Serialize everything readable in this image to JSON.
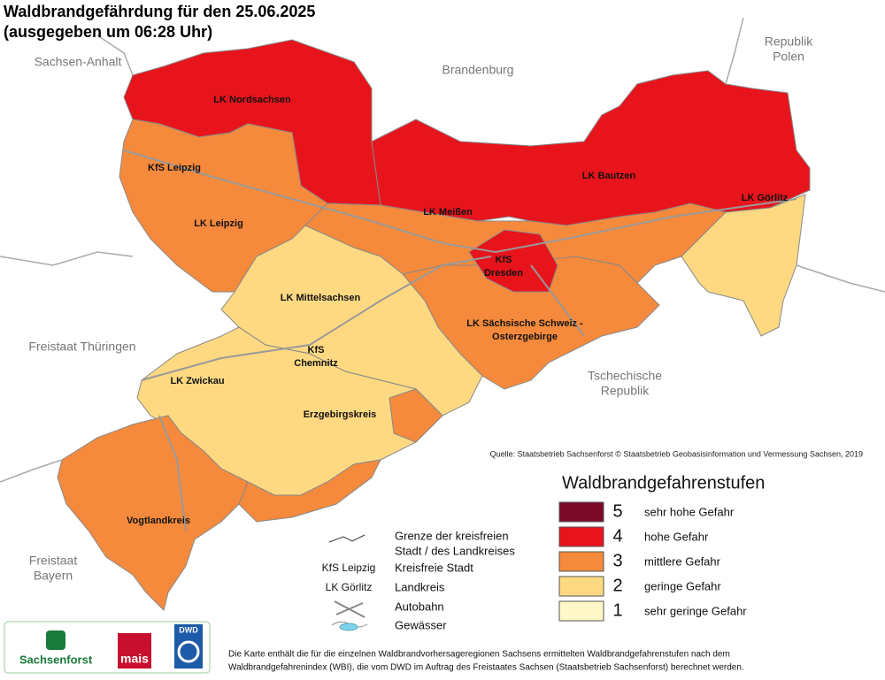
{
  "header": {
    "title": "Waldbrandgefährdung  für den  25.06.2025",
    "subtitle": "(ausgegeben um 06:28 Uhr)"
  },
  "neighbors": [
    [
      "Sachsen-Anhalt"
    ],
    [
      "Brandenburg"
    ],
    [
      "Republik",
      "Polen"
    ],
    [
      "Freistaat Thüringen"
    ],
    [
      "Tschechische",
      "Republik"
    ],
    [
      "Freistaat",
      "Bayern"
    ]
  ],
  "districts": [
    [
      "LK Nordsachsen"
    ],
    [
      "KfS Leipzig"
    ],
    [
      "LK Leipzig"
    ],
    [
      "LK Meißen"
    ],
    [
      "LK Bautzen"
    ],
    [
      "LK Görlitz"
    ],
    [
      "KfS",
      "Dresden"
    ],
    [
      "LK Mittelsachsen"
    ],
    [
      "LK Sächsische Schweiz -",
      "Osterzgebirge"
    ],
    [
      "KfS",
      "Chemnitz"
    ],
    [
      "LK Zwickau"
    ],
    [
      "Erzgebirgskreis"
    ],
    [
      "Vogtlandkreis"
    ]
  ],
  "regions": [
    {
      "level": 4
    },
    {
      "level": 3
    },
    {
      "level": 4
    },
    {
      "level": 3
    },
    {
      "level": 2
    },
    {
      "level": 3
    },
    {
      "level": 4
    },
    {
      "level": 2
    },
    {
      "level": 2
    },
    {
      "level": 3
    },
    {
      "level": 3
    },
    {
      "level": 3
    }
  ],
  "legend": {
    "title": "Waldbrandgefahrenstufen",
    "levels": [
      {
        "level": 5,
        "label": "sehr hohe Gefahr",
        "color": "#7b0a2a"
      },
      {
        "level": 4,
        "label": "hohe Gefahr",
        "color": "#e8141c"
      },
      {
        "level": 3,
        "label": "mittlere Gefahr",
        "color": "#f58a3c"
      },
      {
        "level": 2,
        "label": "geringe Gefahr",
        "color": "#fed982"
      },
      {
        "level": 1,
        "label": "sehr geringe Gefahr",
        "color": "#fff8c8"
      }
    ]
  },
  "symbols": {
    "border": [
      "Grenze der kreisfreien",
      "Stadt / des Landkreises"
    ],
    "city_example": "KfS Leipzig",
    "city": "Kreisfreie Stadt",
    "county_example": "LK Görlitz",
    "county": "Landkreis",
    "motorway": "Autobahn",
    "water": "Gewässer"
  },
  "source": "Quelle: Staatsbetrieb Sachsenforst  © Staatsbetrieb Geobasisinformation und Vermessung Sachsen, 2019",
  "footnote": [
    "Die Karte enthält die für die einzelnen Waldbrandvorhersageregionen Sachsens ermittelten Waldbrandgefahrenstufen nach dem",
    "Waldbrandgefahrenindex (WBI), die vom DWD im Auftrag des Freistaates Sachsen (Staatsbetrieb Sachsenforst) berechnet werden."
  ],
  "logos": [
    "Sachsenforst",
    "mais",
    "DWD"
  ]
}
